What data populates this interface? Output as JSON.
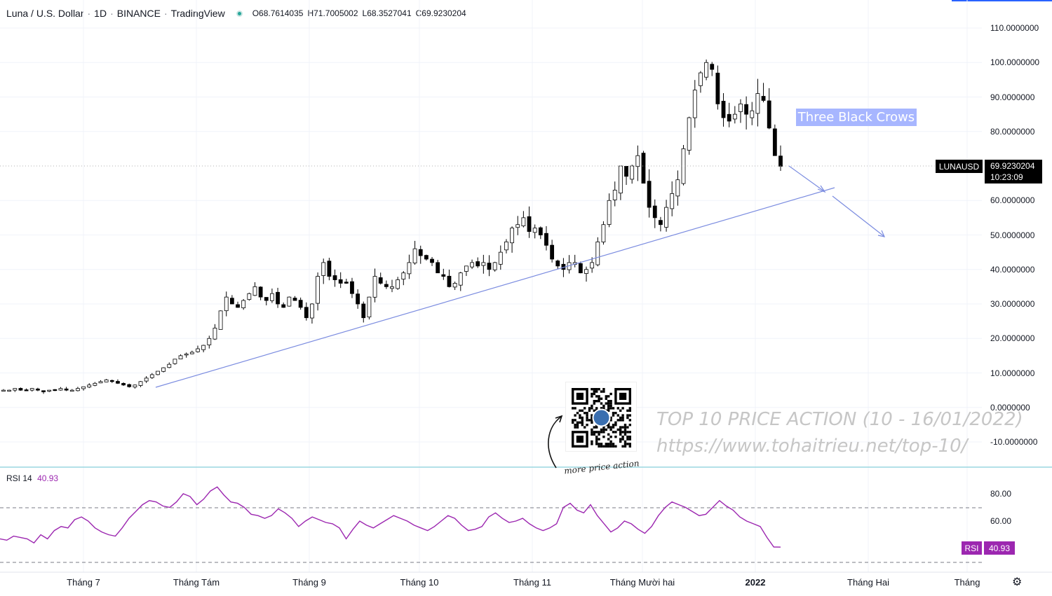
{
  "header": {
    "symbol": "Luna / U.S. Dollar",
    "interval": "1D",
    "exchange": "BINANCE",
    "platform": "TradingView",
    "open_key": "O",
    "open": "68.7614035",
    "high_key": "H",
    "high": "71.7005002",
    "low_key": "L",
    "low": "68.3527041",
    "close_key": "C",
    "close": "69.9230204"
  },
  "price_axis": [
    "110.0000000",
    "100.0000000",
    "90.0000000",
    "80.0000000",
    "60.0000000",
    "50.0000000",
    "40.0000000",
    "30.0000000",
    "20.0000000",
    "10.0000000",
    "0.0000000",
    "-10.0000000"
  ],
  "last_price": {
    "ticker": "LUNAUSD",
    "price": "69.9230204",
    "countdown": "10:23:09"
  },
  "annotation": {
    "text": "Three Black Crows"
  },
  "watermark": {
    "line1": "TOP 10 PRICE ACTION (10 - 16/01/2022)",
    "line2": "https://www.tohaitrieu.net/top-10/",
    "qr_caption": "more price action"
  },
  "rsi": {
    "name": "RSI",
    "period": "14",
    "value": "40.93",
    "axis": [
      "80.00",
      "60.00"
    ],
    "tag_label": "RSI",
    "tag_value": "40.93",
    "color": "#9c27b0"
  },
  "time_axis": [
    "Tháng 7",
    "Tháng Tám",
    "Tháng 9",
    "Tháng 10",
    "Tháng 11",
    "Tháng Mười hai",
    "2022",
    "Tháng Hai",
    "Tháng"
  ],
  "colors": {
    "bull": "#ffffff",
    "bear": "#000000",
    "trendline": "#7b8ce0",
    "accent": "#2962ff"
  },
  "chart_data": {
    "type": "candlestick",
    "symbol": "LUNAUSD",
    "ylim": [
      -10,
      110
    ],
    "close_series_approx": [
      5,
      5,
      5.5,
      5,
      5,
      5.5,
      5,
      4.5,
      5,
      5,
      5.5,
      5,
      5,
      5.5,
      6,
      6.5,
      7,
      7.5,
      8,
      7.5,
      7,
      6.5,
      6,
      6.5,
      7.5,
      8.5,
      9.5,
      10.5,
      11.5,
      12.5,
      14,
      15,
      15.5,
      16,
      17,
      18,
      20,
      23,
      28,
      32,
      30,
      29,
      31,
      33,
      35,
      32,
      31,
      33,
      30,
      29,
      32,
      31,
      29,
      26,
      30,
      38,
      42,
      38,
      37,
      36,
      36,
      33,
      30,
      26,
      32,
      38,
      36,
      35,
      35,
      37,
      39,
      42,
      46,
      44,
      43,
      42,
      39,
      38,
      35,
      36,
      39,
      41,
      42,
      41,
      42,
      40,
      42,
      45,
      48,
      52,
      53,
      55,
      51,
      52,
      50,
      47,
      43,
      41,
      40,
      42,
      42,
      39,
      40,
      42,
      48,
      53,
      60,
      63,
      70,
      67,
      70,
      73,
      65,
      58,
      55,
      53,
      58,
      62,
      66,
      75,
      84,
      92,
      97,
      100,
      98,
      88,
      84,
      83,
      85,
      88,
      85,
      86,
      91,
      89,
      81,
      73,
      69.92
    ],
    "rsi_series_approx": [
      47,
      46,
      49,
      48,
      47,
      44,
      50,
      47,
      53,
      56,
      55,
      61,
      63,
      60,
      55,
      52,
      50,
      49,
      55,
      62,
      67,
      72,
      75,
      74,
      71,
      70,
      74,
      80,
      78,
      72,
      76,
      82,
      85,
      79,
      74,
      73,
      70,
      65,
      64,
      62,
      64,
      69,
      66,
      62,
      56,
      60,
      63,
      61,
      59,
      58,
      55,
      47,
      54,
      60,
      57,
      55,
      58,
      61,
      64,
      62,
      60,
      57,
      55,
      53,
      56,
      60,
      64,
      62,
      57,
      53,
      54,
      56,
      63,
      66,
      62,
      59,
      60,
      62,
      58,
      55,
      53,
      55,
      58,
      70,
      73,
      68,
      66,
      72,
      64,
      58,
      52,
      55,
      60,
      58,
      54,
      51,
      56,
      64,
      70,
      74,
      72,
      70,
      67,
      64,
      65,
      70,
      75,
      71,
      68,
      63,
      60,
      58,
      56,
      48,
      41,
      40.93
    ]
  }
}
